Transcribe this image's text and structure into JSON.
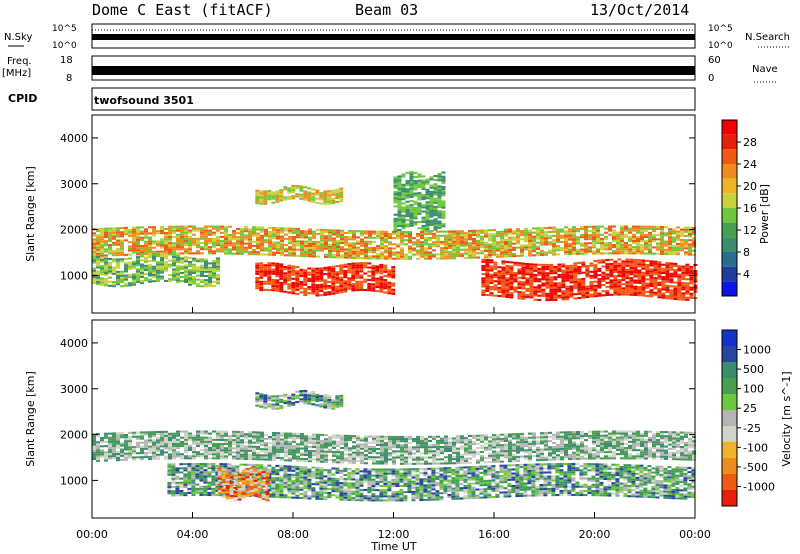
{
  "header": {
    "station": "Dome C East (fitACF)",
    "beam": "Beam 03",
    "date": "13/Oct/2014"
  },
  "param_panels": {
    "nsky_label": "N.Sky",
    "nsky_ticks": [
      "10^5",
      "10^0"
    ],
    "nsearch_label": "N.Search",
    "nsearch_ticks": [
      "10^5",
      "10^0"
    ],
    "freq_label": "Freq.",
    "freq_unit": "[MHz]",
    "freq_ticks": [
      "18",
      "8"
    ],
    "nave_label": "Nave",
    "nave_ticks": [
      "60",
      "0"
    ],
    "cpid_label": "CPID",
    "cpid_value": "twofsound 3501"
  },
  "chart_data": [
    {
      "type": "heatmap",
      "name": "power",
      "ylabel": "Slant Range [km]",
      "yticks": [
        "4000",
        "3000",
        "2000",
        "1000"
      ],
      "colorbar_label": "Power [dB]",
      "colorbar_ticks": [
        "28",
        "24",
        "20",
        "16",
        "12",
        "8",
        "4"
      ],
      "colors": [
        "#0a14e6",
        "#1e3ca0",
        "#2a6e8c",
        "#3c8c6e",
        "#46a050",
        "#6ec83c",
        "#c8d23c",
        "#f0b428",
        "#f08c1e",
        "#f05a14",
        "#e61e0a",
        "#f00000"
      ],
      "bands": [
        {
          "x": [
            0,
            24
          ],
          "y": [
            1400,
            2000
          ],
          "levels": [
            12,
            16,
            20,
            24
          ]
        },
        {
          "x": [
            6.5,
            12
          ],
          "y": [
            600,
            1200
          ],
          "levels": [
            24,
            28
          ]
        },
        {
          "x": [
            15.5,
            24
          ],
          "y": [
            500,
            1300
          ],
          "levels": [
            24,
            28
          ]
        },
        {
          "x": [
            0,
            5
          ],
          "y": [
            800,
            1400
          ],
          "levels": [
            8,
            12,
            16
          ]
        },
        {
          "x": [
            6.5,
            10
          ],
          "y": [
            2600,
            2900
          ],
          "levels": [
            12,
            16,
            20
          ]
        },
        {
          "x": [
            12,
            14
          ],
          "y": [
            2000,
            3200
          ],
          "levels": [
            8,
            12
          ]
        }
      ]
    },
    {
      "type": "heatmap",
      "name": "velocity",
      "xlabel": "Time UT",
      "xticks": [
        "00:00",
        "04:00",
        "08:00",
        "12:00",
        "16:00",
        "20:00",
        "00:00"
      ],
      "ylabel": "Slant Range [km]",
      "yticks": [
        "4000",
        "3000",
        "2000",
        "1000"
      ],
      "colorbar_label": "Velocity [m s^-1]",
      "colorbar_ticks": [
        "1000",
        "500",
        "100",
        "25",
        "-25",
        "-100",
        "-500",
        "-1000"
      ],
      "colors": [
        "#1432c8",
        "#2846a0",
        "#3c8c6e",
        "#46a050",
        "#6ec83c",
        "#b4b4b4",
        "#d2d2c8",
        "#f0b428",
        "#f08c1e",
        "#f05a14",
        "#e61e0a"
      ],
      "bands": [
        {
          "x": [
            0,
            24
          ],
          "y": [
            1400,
            2000
          ],
          "levels": [
            25,
            -25,
            100
          ]
        },
        {
          "x": [
            3,
            24
          ],
          "y": [
            600,
            1300
          ],
          "levels": [
            100,
            500
          ]
        },
        {
          "x": [
            5,
            7
          ],
          "y": [
            600,
            1200
          ],
          "levels": [
            -100,
            -500
          ]
        },
        {
          "x": [
            6.5,
            10
          ],
          "y": [
            2600,
            2900
          ],
          "levels": [
            -100,
            100
          ]
        }
      ]
    }
  ]
}
